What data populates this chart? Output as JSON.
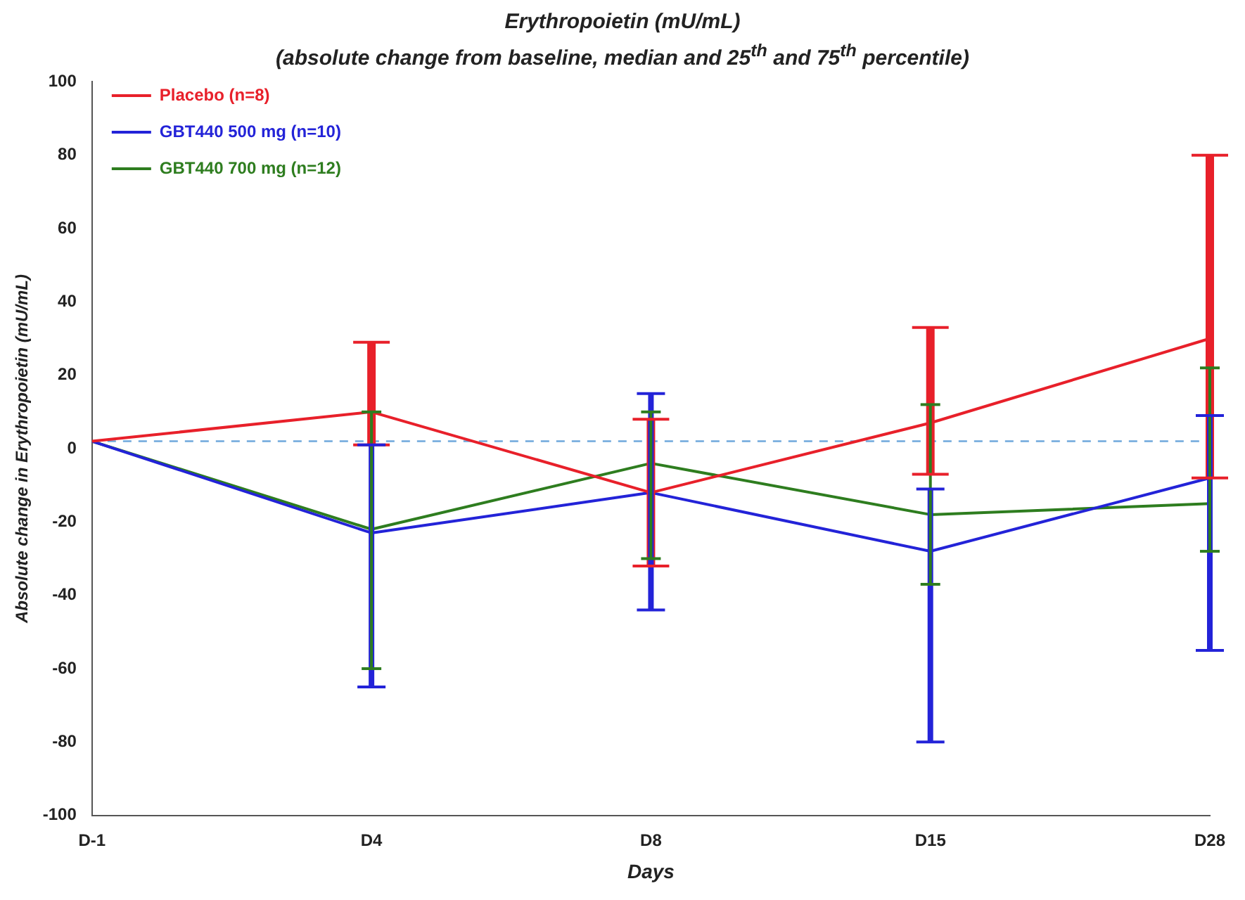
{
  "chart_data": {
    "type": "line",
    "title": "Erythropoietin (mU/mL)",
    "subtitle": "(absolute change from baseline, median and 25$^{th}$ and 75$^{th}$ percentile)",
    "xlabel": "Days",
    "ylabel": "Absolute change in Erythropoietin (mU/mL)",
    "categories": [
      "D-1",
      "D4",
      "D8",
      "D15",
      "D28"
    ],
    "series": [
      {
        "name": "Placebo (n=8)",
        "color": "#e8202a",
        "values": [
          2,
          10,
          -12,
          7,
          30
        ],
        "errors": [
          null,
          [
            1,
            29
          ],
          [
            -32,
            8
          ],
          [
            -7,
            33
          ],
          [
            -8,
            80
          ]
        ]
      },
      {
        "name": "GBT440 500 mg (n=10)",
        "color": "#2323d8",
        "values": [
          2,
          -23,
          -12,
          -28,
          -8
        ],
        "errors": [
          null,
          [
            -65,
            1
          ],
          [
            -44,
            15
          ],
          [
            -80,
            -11
          ],
          [
            -55,
            9
          ]
        ]
      },
      {
        "name": "GBT440 700 mg (n=12)",
        "color": "#2e7d1f",
        "values": [
          2,
          -22,
          -4,
          -18,
          -15
        ],
        "errors": [
          null,
          [
            -60,
            10
          ],
          [
            -30,
            10
          ],
          [
            -37,
            12
          ],
          [
            -28,
            22
          ]
        ]
      }
    ],
    "ylim": [
      -100,
      100
    ],
    "yticks": [
      -100,
      -80,
      -60,
      -40,
      -20,
      0,
      20,
      40,
      60,
      80,
      100
    ],
    "grid": false,
    "legend": "top left",
    "marker": "none",
    "line_style": "solid",
    "ref_lines": [
      {
        "axis": "y",
        "value": 2,
        "color": "#6fa8dc",
        "line_style": "dashed"
      }
    ]
  }
}
